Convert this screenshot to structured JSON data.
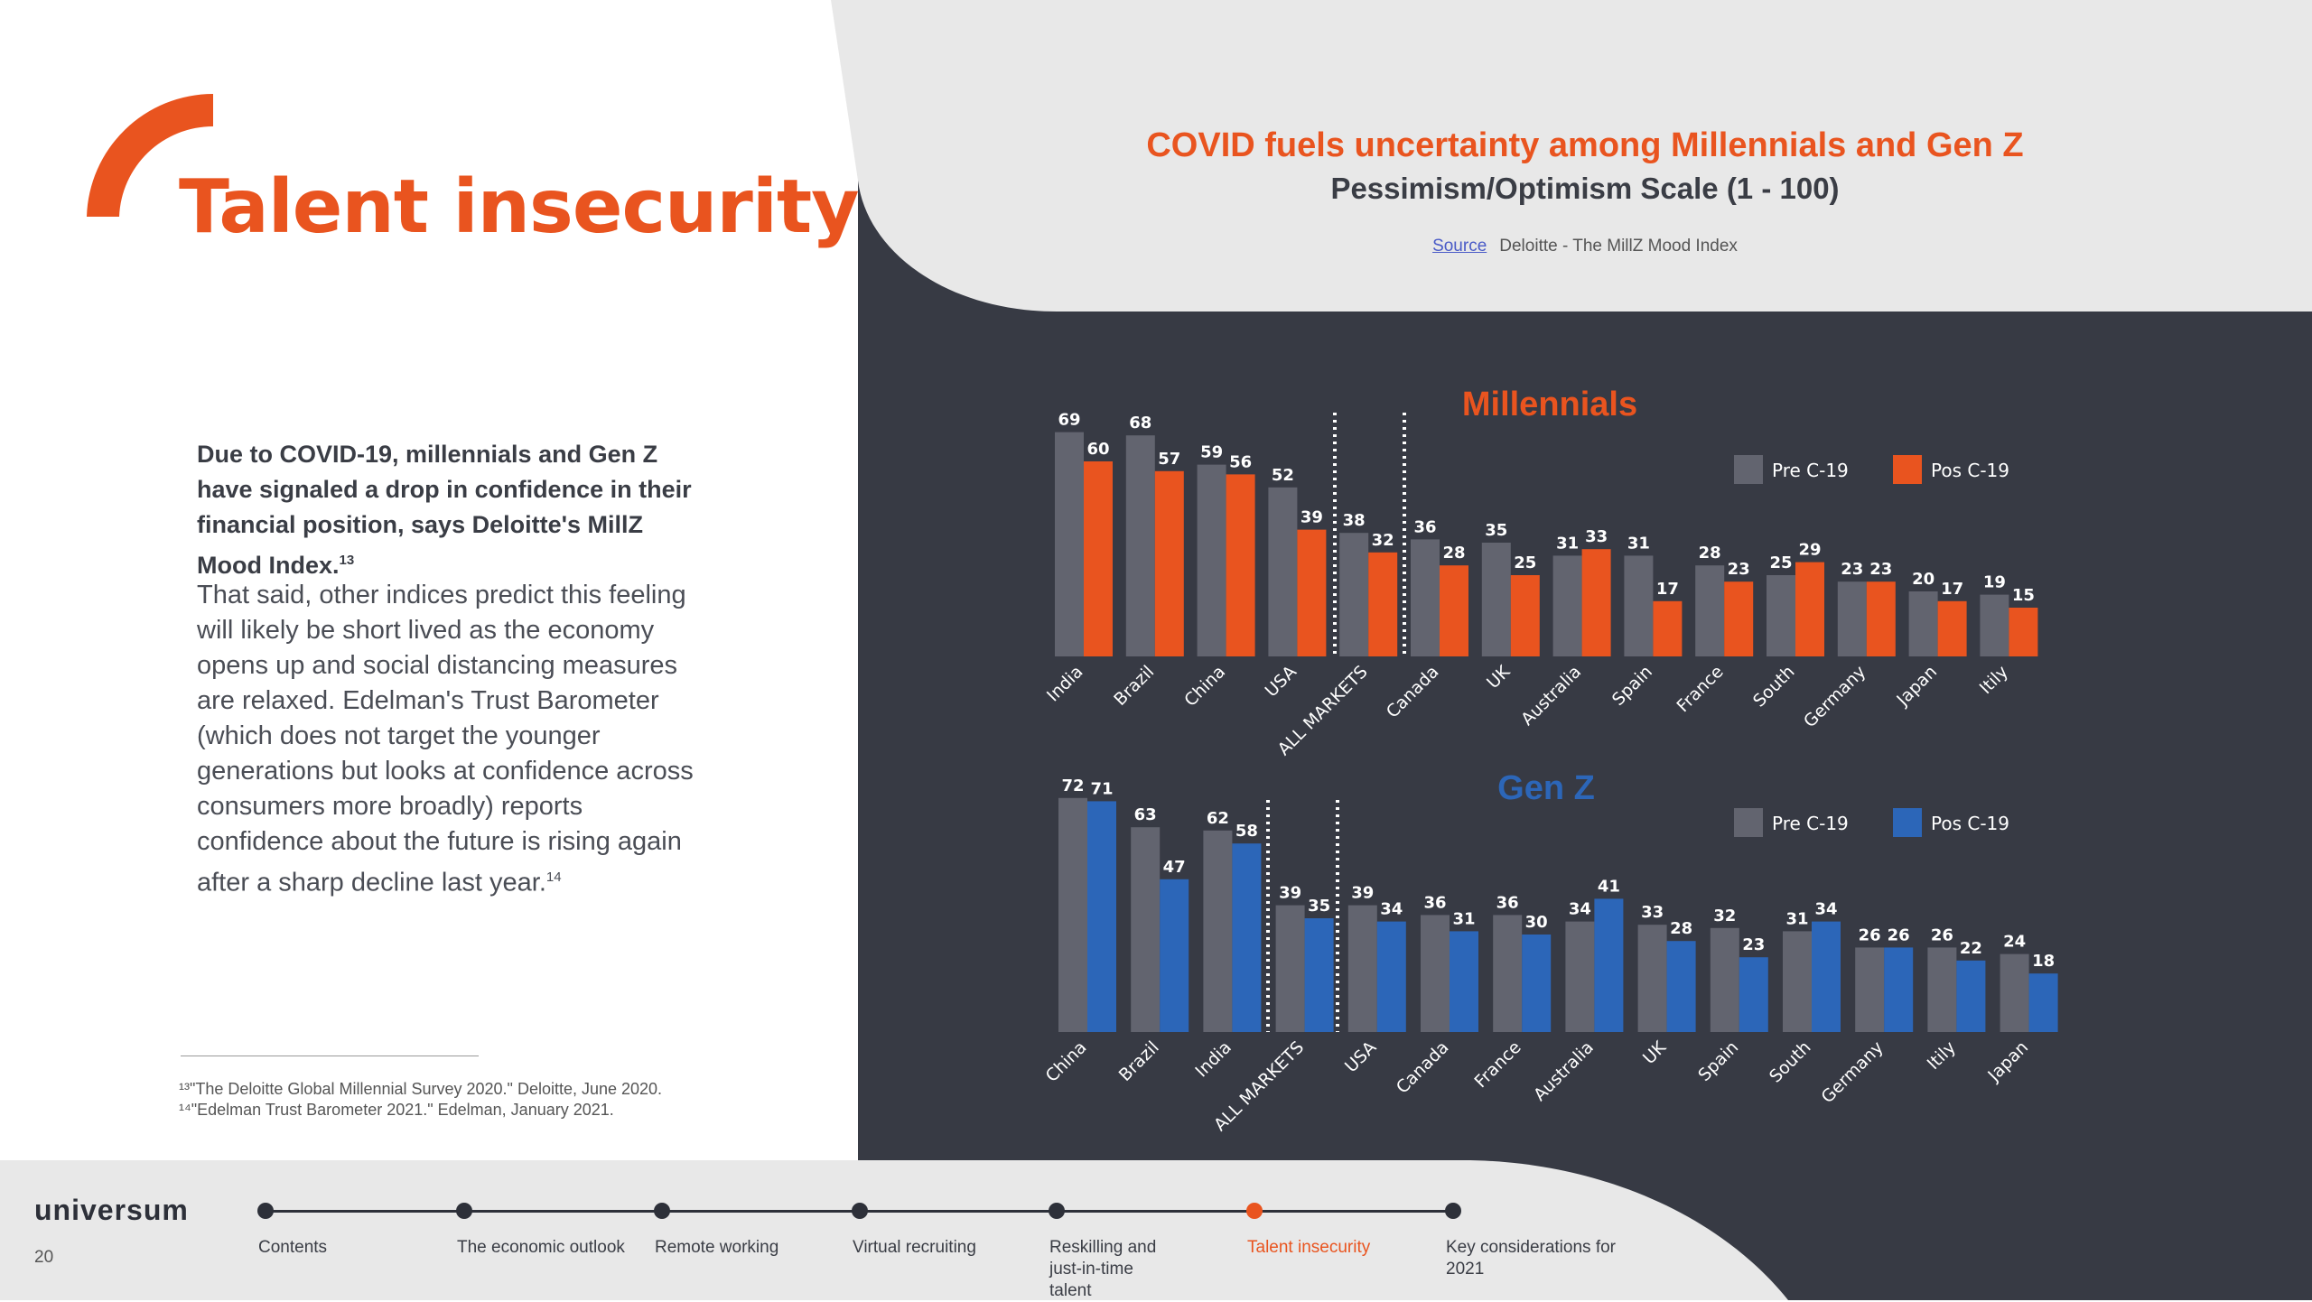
{
  "page": {
    "title": "Talent insecurity",
    "intro": "Due to COVID-19, millennials and Gen Z have signaled a drop in confidence in their financial position, says Deloitte's MillZ Mood Index.",
    "intro_sup": "13",
    "body": "That said, other indices predict this feeling will likely be short lived as the economy opens up and social distancing measures are relaxed. Edelman's Trust Barometer (which does not target the younger generations but looks at confidence across consumers more broadly) reports confidence about the future is rising again after a sharp decline last year.",
    "body_sup": "14",
    "footnotes": [
      "¹³\"The Deloitte Global Millennial Survey 2020.\" Deloitte, June 2020.",
      "¹⁴\"Edelman Trust Barometer 2021.\" Edelman, January 2021."
    ],
    "page_number": "20",
    "logo": "universum",
    "colors": {
      "orange": "#e9541f",
      "blue": "#2c66b8",
      "gray_bar": "#62646f",
      "dark_panel": "#373a44",
      "light_panel": "#e8e8e8"
    }
  },
  "header": {
    "title": "COVID fuels uncertainty among Millennials and Gen Z",
    "subtitle": "Pessimism/Optimism Scale (1 - 100)",
    "source_link": "Source",
    "source_text": "Deloitte - The MillZ Mood Index"
  },
  "nav": {
    "items": [
      {
        "label": "Contents",
        "active": false
      },
      {
        "label": "The economic outlook",
        "active": false
      },
      {
        "label": "Remote working",
        "active": false
      },
      {
        "label": "Virtual recruiting",
        "active": false
      },
      {
        "label": "Reskilling and just-in-time talent",
        "active": false
      },
      {
        "label": "Talent insecurity",
        "active": true
      },
      {
        "label": "Key considerations for 2021",
        "active": false
      }
    ]
  },
  "chart_data": [
    {
      "type": "bar",
      "title": "Millennials",
      "categories": [
        "India",
        "Brazil",
        "China",
        "USA",
        "ALL MARKETS",
        "Canada",
        "UK",
        "Australia",
        "Spain",
        "France",
        "South",
        "Germany",
        "Japan",
        "Itily"
      ],
      "series": [
        {
          "name": "Pre C-19",
          "color": "#62646f",
          "values": [
            69,
            68,
            59,
            52,
            38,
            36,
            35,
            31,
            31,
            28,
            25,
            23,
            20,
            19
          ]
        },
        {
          "name": "Pos C-19",
          "color": "#e9541f",
          "values": [
            60,
            57,
            56,
            39,
            32,
            28,
            25,
            33,
            17,
            23,
            29,
            23,
            17,
            15
          ]
        }
      ],
      "highlight_category": "ALL MARKETS",
      "legend": "top-right"
    },
    {
      "type": "bar",
      "title": "Gen Z",
      "categories": [
        "China",
        "Brazil",
        "India",
        "ALL MARKETS",
        "USA",
        "Canada",
        "France",
        "Australia",
        "UK",
        "Spain",
        "South",
        "Germany",
        "Itily",
        "Japan"
      ],
      "series": [
        {
          "name": "Pre C-19",
          "color": "#62646f",
          "values": [
            72,
            63,
            62,
            39,
            39,
            36,
            36,
            34,
            33,
            32,
            31,
            26,
            26,
            24
          ]
        },
        {
          "name": "Pos C-19",
          "color": "#2c66b8",
          "values": [
            71,
            47,
            58,
            35,
            34,
            31,
            30,
            41,
            28,
            23,
            34,
            26,
            22,
            18
          ]
        }
      ],
      "highlight_category": "ALL MARKETS",
      "legend": "top-right"
    }
  ]
}
